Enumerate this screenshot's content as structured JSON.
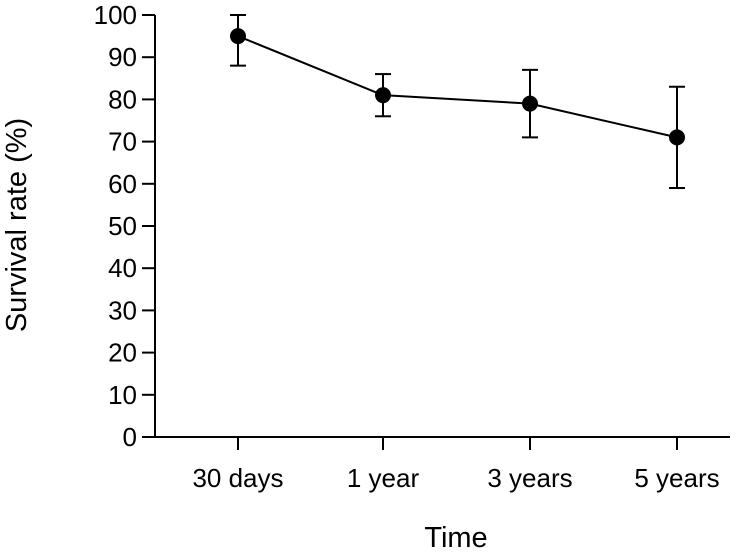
{
  "chart_data": {
    "type": "line",
    "title": "",
    "xlabel": "Time",
    "ylabel": "Survival rate (%)",
    "categories": [
      "30 days",
      "1 year",
      "3 years",
      "5 years"
    ],
    "series": [
      {
        "values": [
          95,
          81,
          79,
          71
        ],
        "error_low": [
          88,
          76,
          71,
          59
        ],
        "error_high": [
          100,
          86,
          87,
          83
        ]
      }
    ],
    "ylim": [
      0,
      100
    ],
    "yticks": [
      0,
      10,
      20,
      30,
      40,
      50,
      60,
      70,
      80,
      90,
      100
    ],
    "ytick_labels": [
      "0",
      "10",
      "20",
      "30",
      "40",
      "50",
      "60",
      "70",
      "80",
      "90",
      "100"
    ],
    "grid": false,
    "legend": "none",
    "colors": {
      "line": "#000000",
      "marker": "#000000"
    }
  }
}
